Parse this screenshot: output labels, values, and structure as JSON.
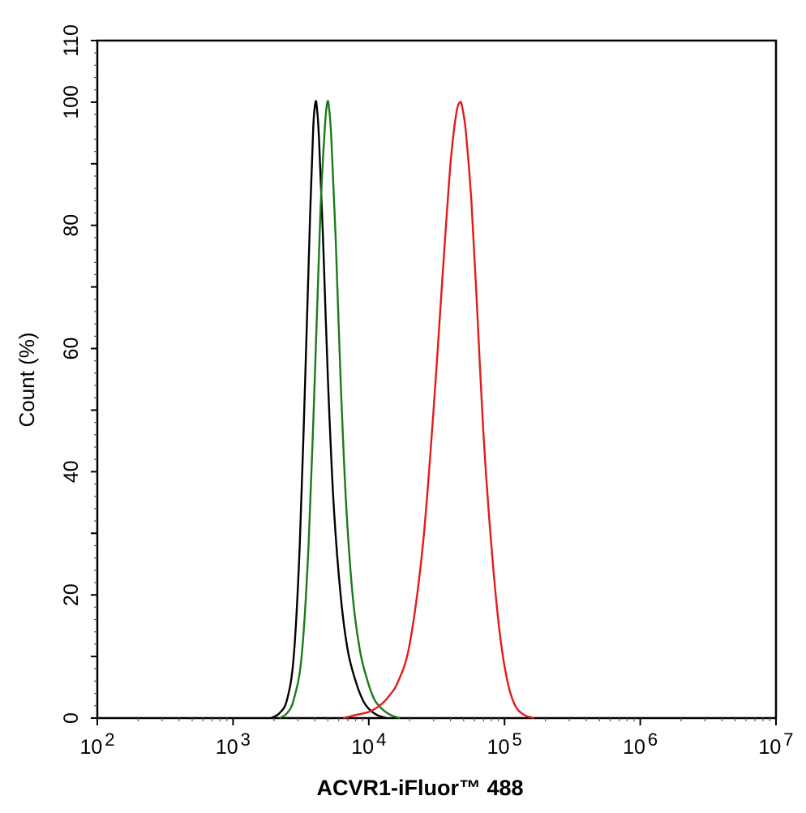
{
  "chart_data": {
    "type": "line",
    "xlabel": "ACVR1-iFluor™ 488",
    "ylabel": "Count  (%)",
    "x_scale": "log",
    "xlim": [
      100,
      10000000
    ],
    "ylim": [
      0,
      110
    ],
    "x_ticks": [
      {
        "value": 100,
        "base": "10",
        "exp": "2"
      },
      {
        "value": 1000,
        "base": "10",
        "exp": "3"
      },
      {
        "value": 10000,
        "base": "10",
        "exp": "4"
      },
      {
        "value": 100000,
        "base": "10",
        "exp": "5"
      },
      {
        "value": 1000000,
        "base": "10",
        "exp": "6"
      },
      {
        "value": 10000000,
        "base": "10",
        "exp": "7"
      }
    ],
    "y_ticks": [
      0,
      20,
      40,
      60,
      80,
      100,
      110
    ],
    "grid": false,
    "legend": "none",
    "series": [
      {
        "color": "#000000",
        "x": [
          1900,
          2200,
          2500,
          2800,
          3100,
          3400,
          3700,
          3900,
          4050,
          4150,
          4300,
          4600,
          5000,
          5500,
          6200,
          7000,
          8000,
          9000,
          10000,
          11500,
          13500
        ],
        "y": [
          0,
          0.8,
          3,
          10,
          28,
          55,
          82,
          96,
          100,
          99,
          94,
          78,
          55,
          35,
          20,
          11,
          6,
          3,
          1.5,
          0.5,
          0
        ]
      },
      {
        "color": "#1a7a1a",
        "x": [
          2200,
          2500,
          2800,
          3200,
          3600,
          4000,
          4400,
          4750,
          4950,
          5100,
          5300,
          5700,
          6200,
          6800,
          7600,
          8600,
          9800,
          11000,
          12500,
          14500,
          17000
        ],
        "y": [
          0,
          0.8,
          3,
          10,
          28,
          55,
          82,
          96,
          100,
          99,
          94,
          78,
          55,
          35,
          20,
          11,
          6,
          3,
          1.5,
          0.5,
          0
        ]
      },
      {
        "color": "#e41a1a",
        "x": [
          6500,
          8000,
          10000,
          12000,
          14000,
          16500,
          20000,
          25000,
          30000,
          35000,
          40000,
          44000,
          47000,
          49000,
          52000,
          57000,
          63000,
          70000,
          80000,
          92000,
          105000,
          120000,
          140000,
          165000
        ],
        "y": [
          0,
          0.5,
          1,
          2,
          3.5,
          6,
          12,
          28,
          50,
          72,
          90,
          98,
          100,
          99,
          95,
          84,
          66,
          46,
          28,
          14,
          6,
          2,
          0.5,
          0
        ]
      }
    ]
  }
}
